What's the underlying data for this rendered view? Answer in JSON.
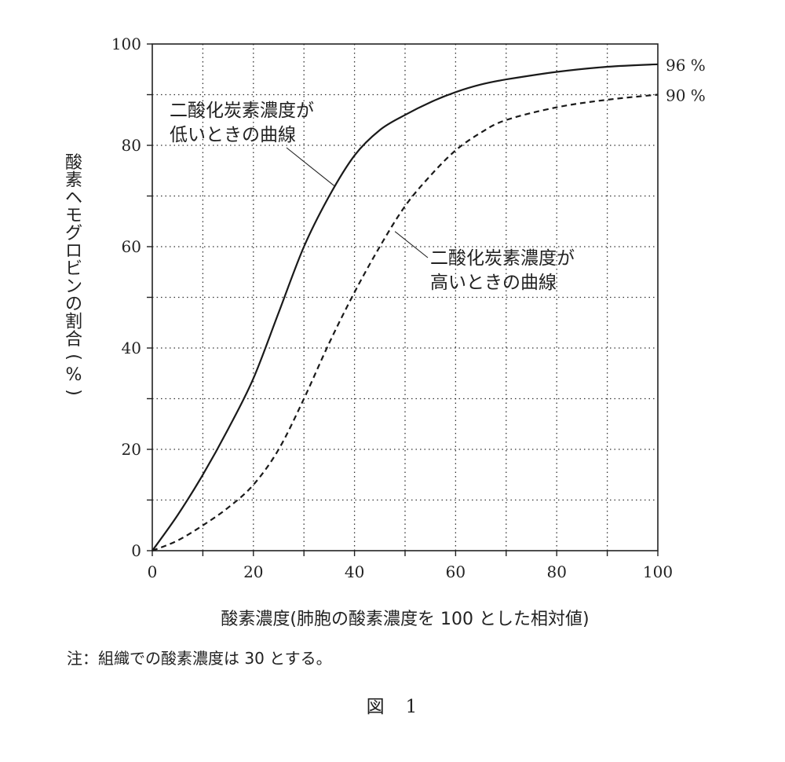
{
  "chart_data": {
    "type": "line",
    "xlabel": "酸素濃度(肺胞の酸素濃度を 100 とした相対値)",
    "ylabel": "酸素ヘモグロビンの割合(%)",
    "xlim": [
      0,
      100
    ],
    "ylim": [
      0,
      100
    ],
    "x_ticks": [
      "0",
      "20",
      "40",
      "60",
      "80",
      "100"
    ],
    "y_ticks": [
      "0",
      "20",
      "40",
      "60",
      "80",
      "100"
    ],
    "grid": "dotted every 10",
    "series": [
      {
        "name": "二酸化炭素濃度が低いときの曲線",
        "style": "solid",
        "end_label": "96 %",
        "label_lines": [
          "二酸化炭素濃度が",
          "低いときの曲線"
        ],
        "points": [
          [
            0,
            0
          ],
          [
            5,
            7
          ],
          [
            10,
            15
          ],
          [
            15,
            24
          ],
          [
            20,
            34
          ],
          [
            25,
            47
          ],
          [
            30,
            60
          ],
          [
            35,
            70
          ],
          [
            40,
            78
          ],
          [
            45,
            83
          ],
          [
            50,
            86
          ],
          [
            55,
            88.5
          ],
          [
            60,
            90.5
          ],
          [
            65,
            92
          ],
          [
            70,
            93
          ],
          [
            80,
            94.5
          ],
          [
            90,
            95.5
          ],
          [
            100,
            96
          ]
        ]
      },
      {
        "name": "二酸化炭素濃度が高いときの曲線",
        "style": "dashed",
        "end_label": "90 %",
        "label_lines": [
          "二酸化炭素濃度が",
          "高いときの曲線"
        ],
        "points": [
          [
            0,
            0
          ],
          [
            5,
            2
          ],
          [
            10,
            5
          ],
          [
            15,
            8.5
          ],
          [
            20,
            13
          ],
          [
            25,
            20
          ],
          [
            30,
            30
          ],
          [
            35,
            41
          ],
          [
            40,
            51
          ],
          [
            45,
            60
          ],
          [
            50,
            68
          ],
          [
            55,
            74
          ],
          [
            60,
            79
          ],
          [
            65,
            82.5
          ],
          [
            70,
            85
          ],
          [
            80,
            87.5
          ],
          [
            90,
            89
          ],
          [
            100,
            90
          ]
        ]
      }
    ]
  },
  "note": "注：組織での酸素濃度は 30 とする。",
  "figure_label": "図　1"
}
